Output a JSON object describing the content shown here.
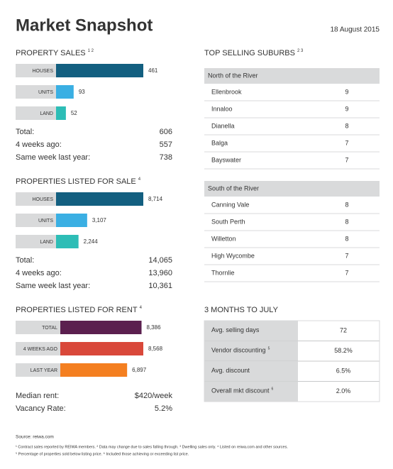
{
  "header": {
    "title": "Market Snapshot",
    "date": "18 August 2015"
  },
  "property_sales": {
    "title": "PROPERTY SALES",
    "note": "1 2",
    "bars": [
      {
        "label": "HOUSES",
        "value": 461,
        "color": "#135f80"
      },
      {
        "label": "UNITS",
        "value": 93,
        "color": "#3aafe3"
      },
      {
        "label": "LAND",
        "value": 52,
        "color": "#2dbdb6"
      }
    ],
    "stats": [
      {
        "label": "Total:",
        "value": "606"
      },
      {
        "label": "4 weeks ago:",
        "value": "557"
      },
      {
        "label": "Same week last year:",
        "value": "738"
      }
    ]
  },
  "listed_for_sale": {
    "title": "PROPERTIES LISTED FOR SALE",
    "note": "4",
    "bars": [
      {
        "label": "HOUSES",
        "value": 8714,
        "value_label": "8,714",
        "color": "#135f80"
      },
      {
        "label": "UNITS",
        "value": 3107,
        "value_label": "3,107",
        "color": "#3aafe3"
      },
      {
        "label": "LAND",
        "value": 2244,
        "value_label": "2,244",
        "color": "#2dbdb6"
      }
    ],
    "stats": [
      {
        "label": "Total:",
        "value": "14,065"
      },
      {
        "label": "4 weeks ago:",
        "value": "13,960"
      },
      {
        "label": "Same week last year:",
        "value": "10,361"
      }
    ]
  },
  "listed_for_rent": {
    "title": "PROPERTIES LISTED FOR RENT",
    "note": "4",
    "bars": [
      {
        "label": "TOTAL",
        "value": 8386,
        "value_label": "8,386",
        "color": "#5b1f4f"
      },
      {
        "label": "4 WEEKS AGO",
        "value": 8568,
        "value_label": "8,568",
        "color": "#d9483a"
      },
      {
        "label": "LAST YEAR",
        "value": 6897,
        "value_label": "6,897",
        "color": "#f47f20"
      }
    ],
    "stats": [
      {
        "label": "Median rent:",
        "value": "$420/week"
      },
      {
        "label": "Vacancy Rate:",
        "value": "5.2%"
      }
    ]
  },
  "top_selling_suburbs": {
    "title": "TOP SELLING SUBURBS",
    "note": "2 3",
    "groups": [
      {
        "name": "North of the River",
        "rows": [
          {
            "suburb": "Ellenbrook",
            "sales": 9
          },
          {
            "suburb": "Innaloo",
            "sales": 9
          },
          {
            "suburb": "Dianella",
            "sales": 8
          },
          {
            "suburb": "Balga",
            "sales": 7
          },
          {
            "suburb": "Bayswater",
            "sales": 7
          }
        ]
      },
      {
        "name": "South of the River",
        "rows": [
          {
            "suburb": "Canning Vale",
            "sales": 8
          },
          {
            "suburb": "South Perth",
            "sales": 8
          },
          {
            "suburb": "Willetton",
            "sales": 8
          },
          {
            "suburb": "High Wycombe",
            "sales": 7
          },
          {
            "suburb": "Thornlie",
            "sales": 7
          }
        ]
      }
    ]
  },
  "three_months": {
    "title": "3 MONTHS TO JULY",
    "rows": [
      {
        "label": "Avg. selling days",
        "value": "72"
      },
      {
        "label": "Vendor discounting",
        "note": "5",
        "value": "58.2%"
      },
      {
        "label": "Avg. discount",
        "value": "6.5%"
      },
      {
        "label": "Overall mkt discount",
        "note": "6",
        "value": "2.0%"
      }
    ]
  },
  "footer": {
    "source": "Source: reiwa.com",
    "notes": [
      "¹ Contract sales reported by REIWA members. ² Data may change due to sales falling through. ³ Dwelling sales only. ⁴ Listed on reiwa.com and other sources.",
      "⁵ Percentage of properties sold below listing price. ⁶ Included those achieving or exceeding list price."
    ]
  }
}
